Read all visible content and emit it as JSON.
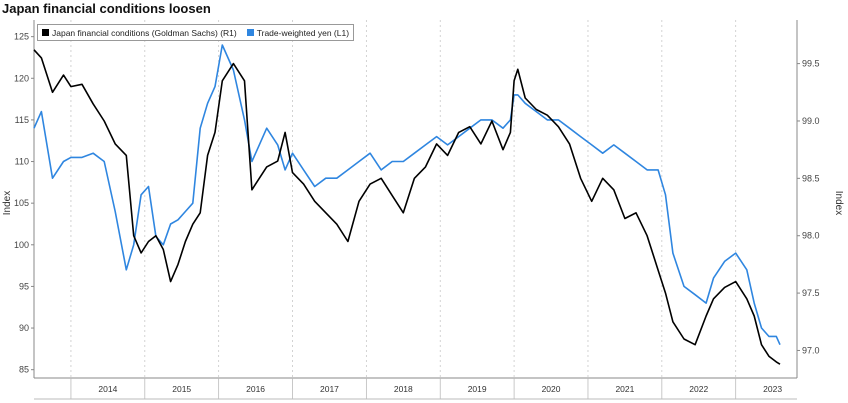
{
  "title": "Japan financial conditions loosen",
  "chart_data": {
    "type": "line",
    "title": "Japan financial conditions loosen",
    "x_categories": [
      "2014",
      "2015",
      "2016",
      "2017",
      "2018",
      "2019",
      "2020",
      "2021",
      "2022",
      "2023"
    ],
    "xlim": [
      "2013-07",
      "2023-10"
    ],
    "left_axis": {
      "label": "Index",
      "ylim": [
        84,
        127
      ],
      "ticks": [
        85,
        90,
        95,
        100,
        105,
        110,
        115,
        120,
        125
      ]
    },
    "right_axis": {
      "label": "Index",
      "ylim": [
        96.76,
        99.88
      ],
      "ticks": [
        "97.0",
        "97.5",
        "98.0",
        "98.5",
        "99.0",
        "99.5"
      ]
    },
    "legend": {
      "placement": "top-left"
    },
    "grid": "vertical dashed",
    "series": [
      {
        "name": "Japan financial conditions (Goldman Sachs) (R1)",
        "axis": "right",
        "color": "#000000",
        "x": [
          2013.5,
          2013.6,
          2013.75,
          2013.9,
          2014.0,
          2014.15,
          2014.3,
          2014.45,
          2014.6,
          2014.75,
          2014.85,
          2014.95,
          2015.05,
          2015.15,
          2015.25,
          2015.35,
          2015.45,
          2015.55,
          2015.65,
          2015.75,
          2015.85,
          2015.95,
          2016.05,
          2016.2,
          2016.35,
          2016.45,
          2016.55,
          2016.65,
          2016.8,
          2016.9,
          2017.0,
          2017.15,
          2017.3,
          2017.45,
          2017.6,
          2017.75,
          2017.9,
          2018.05,
          2018.2,
          2018.35,
          2018.5,
          2018.65,
          2018.8,
          2018.95,
          2019.1,
          2019.25,
          2019.4,
          2019.55,
          2019.7,
          2019.85,
          2019.95,
          2020.0,
          2020.05,
          2020.15,
          2020.3,
          2020.45,
          2020.6,
          2020.75,
          2020.9,
          2021.05,
          2021.2,
          2021.35,
          2021.5,
          2021.65,
          2021.8,
          2021.95,
          2022.05,
          2022.15,
          2022.3,
          2022.45,
          2022.6,
          2022.7,
          2022.85,
          2023.0,
          2023.15,
          2023.25,
          2023.35,
          2023.45,
          2023.55,
          2023.6
        ],
        "values": [
          99.62,
          99.55,
          99.25,
          99.4,
          99.3,
          99.32,
          99.15,
          99.0,
          98.8,
          98.7,
          98.0,
          97.85,
          97.95,
          98.0,
          97.88,
          97.6,
          97.75,
          97.95,
          98.1,
          98.2,
          98.7,
          98.9,
          99.35,
          99.5,
          99.35,
          98.4,
          98.5,
          98.6,
          98.65,
          98.9,
          98.55,
          98.45,
          98.3,
          98.2,
          98.1,
          97.95,
          98.3,
          98.45,
          98.5,
          98.35,
          98.2,
          98.5,
          98.6,
          98.8,
          98.7,
          98.9,
          98.95,
          98.8,
          99.0,
          98.75,
          98.9,
          99.35,
          99.45,
          99.2,
          99.1,
          99.05,
          98.95,
          98.8,
          98.5,
          98.3,
          98.5,
          98.4,
          98.15,
          98.2,
          98.0,
          97.7,
          97.5,
          97.25,
          97.1,
          97.05,
          97.3,
          97.45,
          97.55,
          97.6,
          97.45,
          97.3,
          97.05,
          96.95,
          96.9,
          96.88
        ]
      },
      {
        "name": "Trade-weighted yen (L1)",
        "axis": "left",
        "color": "#2f86e0",
        "x": [
          2013.5,
          2013.6,
          2013.75,
          2013.9,
          2014.0,
          2014.15,
          2014.3,
          2014.45,
          2014.6,
          2014.75,
          2014.85,
          2014.95,
          2015.05,
          2015.15,
          2015.25,
          2015.35,
          2015.45,
          2015.55,
          2015.65,
          2015.75,
          2015.85,
          2015.95,
          2016.05,
          2016.2,
          2016.35,
          2016.45,
          2016.55,
          2016.65,
          2016.8,
          2016.9,
          2017.0,
          2017.15,
          2017.3,
          2017.45,
          2017.6,
          2017.75,
          2017.9,
          2018.05,
          2018.2,
          2018.35,
          2018.5,
          2018.65,
          2018.8,
          2018.95,
          2019.1,
          2019.25,
          2019.4,
          2019.55,
          2019.7,
          2019.85,
          2019.95,
          2020.0,
          2020.05,
          2020.15,
          2020.3,
          2020.45,
          2020.6,
          2020.75,
          2020.9,
          2021.05,
          2021.2,
          2021.35,
          2021.5,
          2021.65,
          2021.8,
          2021.95,
          2022.05,
          2022.15,
          2022.3,
          2022.45,
          2022.6,
          2022.7,
          2022.85,
          2023.0,
          2023.15,
          2023.25,
          2023.35,
          2023.45,
          2023.55,
          2023.6
        ],
        "values": [
          114,
          116,
          108,
          110,
          110.5,
          110.5,
          111,
          110,
          104,
          97,
          100,
          106,
          107,
          101,
          100,
          102.5,
          103,
          104,
          105,
          114,
          117,
          119,
          124,
          121,
          115,
          110,
          112,
          114,
          112,
          109,
          111,
          109,
          107,
          108,
          108,
          109,
          110,
          111,
          109,
          110,
          110,
          111,
          112,
          113,
          112,
          113,
          114,
          115,
          115,
          114,
          115,
          118,
          118,
          117,
          116,
          115,
          115,
          114,
          113,
          112,
          111,
          112,
          111,
          110,
          109,
          109,
          106,
          99,
          95,
          94,
          93,
          96,
          98,
          99,
          97,
          93,
          90,
          89,
          89,
          88
        ]
      }
    ]
  }
}
